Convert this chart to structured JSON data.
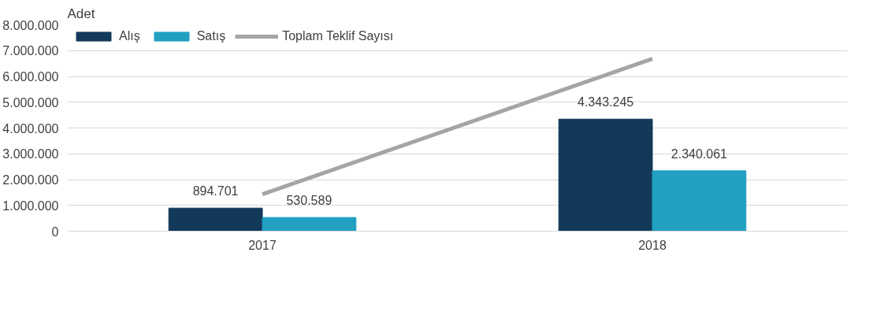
{
  "chart_data": {
    "type": "bar",
    "ylabel": "Adet",
    "categories": [
      "2017",
      "2018"
    ],
    "series": [
      {
        "name": "Alış",
        "color": "#13395a",
        "values": [
          894701,
          4343245
        ],
        "value_labels": [
          "894.701",
          "4.343.245"
        ]
      },
      {
        "name": "Satış",
        "color": "#21a0c2",
        "values": [
          530589,
          2340061
        ],
        "value_labels": [
          "530.589",
          "2.340.061"
        ]
      },
      {
        "name": "Toplam Teklif Sayısı",
        "type": "line",
        "color": "#a5a5a5",
        "values": [
          1430000,
          6680000
        ]
      }
    ],
    "ylim": [
      0,
      8000000
    ],
    "yticks": [
      {
        "value": 0,
        "label": "0"
      },
      {
        "value": 1000000,
        "label": "1.000.000"
      },
      {
        "value": 2000000,
        "label": "2.000.000"
      },
      {
        "value": 3000000,
        "label": "3.000.000"
      },
      {
        "value": 4000000,
        "label": "4.000.000"
      },
      {
        "value": 5000000,
        "label": "5.000.000"
      },
      {
        "value": 6000000,
        "label": "6.000.000"
      },
      {
        "value": 7000000,
        "label": "7.000.000"
      },
      {
        "value": 8000000,
        "label": "8.000.000"
      }
    ],
    "grid": "y",
    "legend": "top left",
    "marker": "none",
    "line_style": "solid"
  }
}
